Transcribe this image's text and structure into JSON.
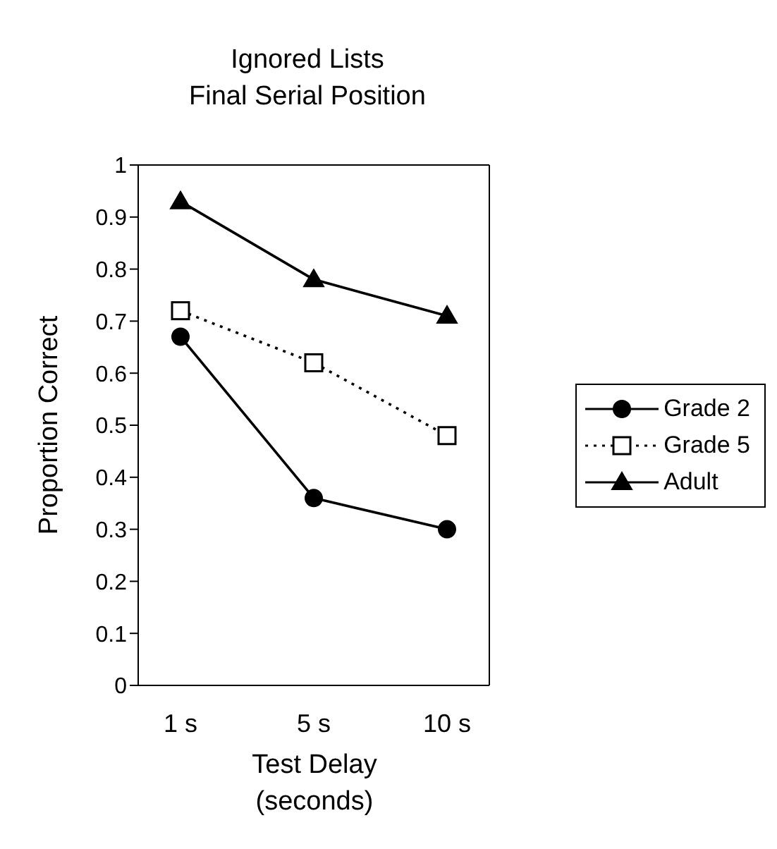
{
  "chart_data": {
    "type": "line",
    "title": "Ignored Lists",
    "subtitle": "Final Serial Position",
    "xlabel": "Test Delay\n(seconds)",
    "ylabel": "Proportion Correct",
    "categories": [
      "1 s",
      "5 s",
      "10 s"
    ],
    "series": [
      {
        "name": "Grade 2",
        "color": "#000000",
        "values": [
          0.67,
          0.36,
          0.3
        ],
        "marker": "circle",
        "line_style": "solid"
      },
      {
        "name": "Grade 5",
        "color": "#000000",
        "values": [
          0.72,
          0.62,
          0.48
        ],
        "marker": "square",
        "line_style": "dotted"
      },
      {
        "name": "Adult",
        "color": "#000000",
        "values": [
          0.93,
          0.78,
          0.71
        ],
        "marker": "triangle",
        "line_style": "solid"
      }
    ],
    "ylim": [
      0,
      1
    ],
    "yticks": [
      0,
      0.1,
      0.2,
      0.3,
      0.4,
      0.5,
      0.6,
      0.7,
      0.8,
      0.9,
      1
    ],
    "grid": false,
    "legend": "right"
  }
}
